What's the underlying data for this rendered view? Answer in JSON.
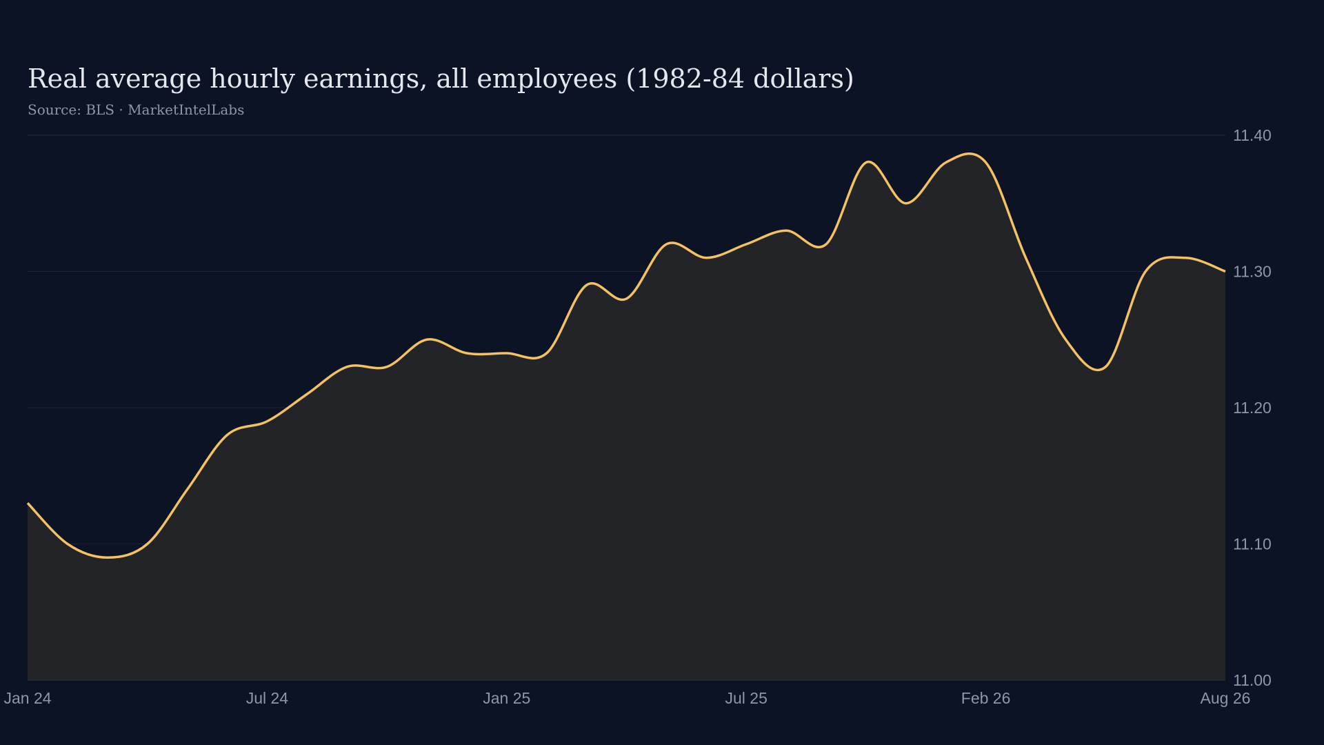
{
  "chart_data": {
    "type": "area",
    "title": "Real average hourly earnings, all employees (1982-84 dollars)",
    "subtitle": "Source: BLS · MarketIntelLabs",
    "categories": [
      "Jan 24",
      null,
      null,
      null,
      null,
      null,
      "Jul 24",
      null,
      null,
      null,
      null,
      null,
      "Jan 25",
      null,
      null,
      null,
      null,
      null,
      "Jul 25",
      null,
      null,
      null,
      null,
      null,
      "Feb 26",
      null,
      null,
      null,
      null,
      null,
      "Aug 26"
    ],
    "values": [
      11.13,
      11.1,
      11.09,
      11.1,
      11.14,
      11.18,
      11.19,
      11.21,
      11.23,
      11.23,
      11.25,
      11.24,
      11.24,
      11.24,
      11.29,
      11.28,
      11.32,
      11.31,
      11.32,
      11.33,
      11.32,
      11.38,
      11.35,
      11.38,
      11.38,
      11.31,
      11.25,
      11.23,
      11.3,
      11.31,
      11.3
    ],
    "color": "#f4c261",
    "fill": "#222428",
    "ylim": [
      11.0,
      11.4
    ],
    "yticks": [
      {
        "value": 11.0,
        "label": "11.00"
      },
      {
        "value": 11.1,
        "label": "11.10"
      },
      {
        "value": 11.2,
        "label": "11.20"
      },
      {
        "value": 11.3,
        "label": "11.30"
      },
      {
        "value": 11.4,
        "label": "11.40"
      }
    ],
    "grid": true
  }
}
